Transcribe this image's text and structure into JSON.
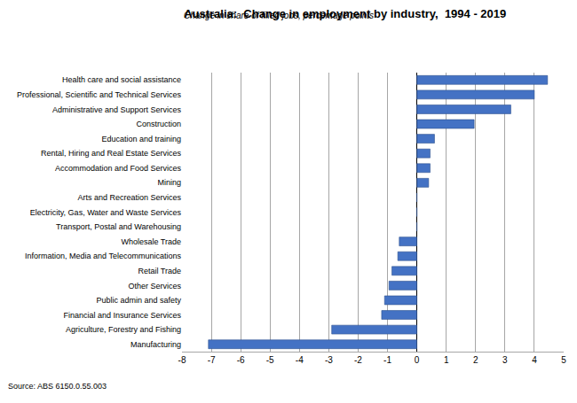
{
  "chart_data": {
    "type": "bar",
    "orientation": "horizontal",
    "title": "Australia:  Change in employment by industry,  1994 - 2019",
    "subtitle": "Change in share of filled jobs, percentage points",
    "source": "Source: ABS 6150.0.55.003",
    "categories": [
      "Health care and social assistance",
      "Professional, Scientific and Technical Services",
      "Administrative and Support Services",
      "Construction",
      "Education and training",
      "Rental, Hiring and Real Estate Services",
      "Accommodation and Food Services",
      "Mining",
      "Arts and Recreation Services",
      "Electricity, Gas, Water and Waste Services",
      "Transport, Postal and Warehousing",
      "Wholesale Trade",
      "Information, Media and Telecommunications",
      "Retail Trade",
      "Other Services",
      "Public admin and safety",
      "Financial and Insurance Services",
      "Agriculture, Forestry and Fishing",
      "Manufacturing"
    ],
    "values": [
      4.45,
      4.0,
      3.2,
      1.95,
      0.6,
      0.45,
      0.45,
      0.4,
      0.0,
      0.0,
      0.0,
      -0.6,
      -0.65,
      -0.85,
      -0.95,
      -1.1,
      -1.2,
      -2.9,
      -7.1
    ],
    "color": "#4472c4",
    "xlim": [
      -8,
      5
    ],
    "xticks": [
      -8,
      -7,
      -6,
      -5,
      -4,
      -3,
      -2,
      -1,
      0,
      1,
      2,
      3,
      4,
      5
    ],
    "grid": true
  }
}
